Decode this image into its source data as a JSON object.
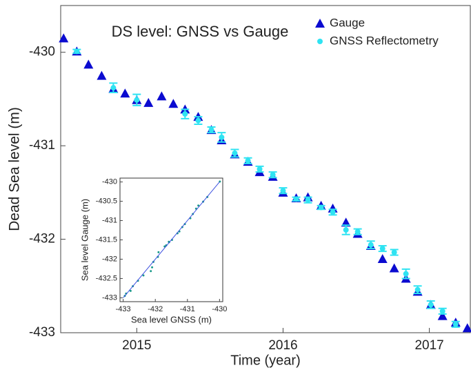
{
  "chart_data": [
    {
      "type": "scatter",
      "title": "DS level: GNSS vs Gauge",
      "x_label": "Time (year)",
      "y_label": "Dead Sea level (m)",
      "xlim": [
        2014.48,
        2017.28
      ],
      "ylim": [
        -433,
        -429.5
      ],
      "xticks": [
        2015,
        2016,
        2017
      ],
      "yticks": [
        -433,
        -432,
        -431,
        -430
      ],
      "legend": "upper right",
      "series": [
        {
          "name": "Gauge",
          "color": "#0b0bd0",
          "marker": "triangle",
          "x": [
            2014.5,
            2014.59,
            2014.67,
            2014.76,
            2014.84,
            2014.92,
            2015.0,
            2015.08,
            2015.17,
            2015.25,
            2015.33,
            2015.42,
            2015.51,
            2015.58,
            2015.67,
            2015.76,
            2015.84,
            2015.93,
            2016.0,
            2016.09,
            2016.17,
            2016.26,
            2016.34,
            2016.43,
            2016.51,
            2016.6,
            2016.68,
            2016.76,
            2016.84,
            2016.92,
            2017.01,
            2017.09,
            2017.18,
            2017.26
          ],
          "values": [
            -429.85,
            -429.99,
            -430.13,
            -430.25,
            -430.39,
            -430.44,
            -430.51,
            -430.54,
            -430.47,
            -430.55,
            -430.61,
            -430.69,
            -430.83,
            -430.94,
            -431.09,
            -431.17,
            -431.28,
            -431.33,
            -431.5,
            -431.56,
            -431.55,
            -431.64,
            -431.67,
            -431.82,
            -431.94,
            -432.07,
            -432.21,
            -432.31,
            -432.42,
            -432.56,
            -432.7,
            -432.82,
            -432.89,
            -432.95
          ]
        },
        {
          "name": "GNSS Reflectometry",
          "color": "#2fe3f2",
          "marker": "circle",
          "x": [
            2014.59,
            2014.84,
            2015.0,
            2015.33,
            2015.42,
            2015.51,
            2015.58,
            2015.67,
            2015.76,
            2015.84,
            2015.93,
            2016.0,
            2016.09,
            2016.17,
            2016.26,
            2016.34,
            2016.43,
            2016.51,
            2016.6,
            2016.68,
            2016.76,
            2016.84,
            2016.92,
            2017.01,
            2017.09,
            2017.18
          ],
          "values": [
            -429.99,
            -430.38,
            -430.51,
            -430.66,
            -430.73,
            -430.83,
            -430.91,
            -431.08,
            -431.16,
            -431.25,
            -431.31,
            -431.48,
            -431.57,
            -431.58,
            -431.66,
            -431.71,
            -431.9,
            -431.92,
            -432.06,
            -432.1,
            -432.14,
            -432.37,
            -432.54,
            -432.7,
            -432.77,
            -432.91
          ],
          "errors": [
            0.02,
            0.05,
            0.06,
            0.05,
            0.04,
            0.03,
            0.05,
            0.04,
            0.03,
            0.03,
            0.03,
            0.03,
            0.02,
            0.03,
            0.02,
            0.03,
            0.05,
            0.03,
            0.04,
            0.03,
            0.03,
            0.05,
            0.04,
            0.04,
            0.03,
            0.03
          ]
        }
      ]
    },
    {
      "type": "scatter",
      "x_label": "Sea level GNSS (m)",
      "y_label": "Sea level Gauge (m)",
      "xlim": [
        -433.1,
        -429.9
      ],
      "ylim": [
        -433.1,
        -429.9
      ],
      "xticks": [
        -433,
        -432,
        -431,
        -430
      ],
      "yticks": [
        -433,
        -432.5,
        -432,
        -431.5,
        -431,
        -430.5,
        -430
      ],
      "series": [
        {
          "color": "#1a9a8a",
          "marker": "dot",
          "x": [
            -432.95,
            -432.91,
            -432.77,
            -432.7,
            -432.54,
            -432.37,
            -432.14,
            -432.1,
            -432.06,
            -431.92,
            -431.9,
            -431.71,
            -431.66,
            -431.58,
            -431.57,
            -431.48,
            -431.31,
            -431.25,
            -431.16,
            -431.08,
            -430.91,
            -430.83,
            -430.73,
            -430.66,
            -430.51,
            -430.38,
            -429.99
          ],
          "values": [
            -432.95,
            -432.89,
            -432.82,
            -432.7,
            -432.56,
            -432.42,
            -432.31,
            -432.21,
            -432.07,
            -431.94,
            -431.82,
            -431.67,
            -431.64,
            -431.55,
            -431.56,
            -431.5,
            -431.33,
            -431.28,
            -431.17,
            -431.09,
            -430.94,
            -430.83,
            -430.69,
            -430.61,
            -430.51,
            -430.39,
            -429.99
          ]
        },
        {
          "color": "#3b4fe0",
          "marker": "line",
          "x": [
            -433,
            -430
          ],
          "values": [
            -433,
            -430
          ]
        }
      ]
    }
  ]
}
